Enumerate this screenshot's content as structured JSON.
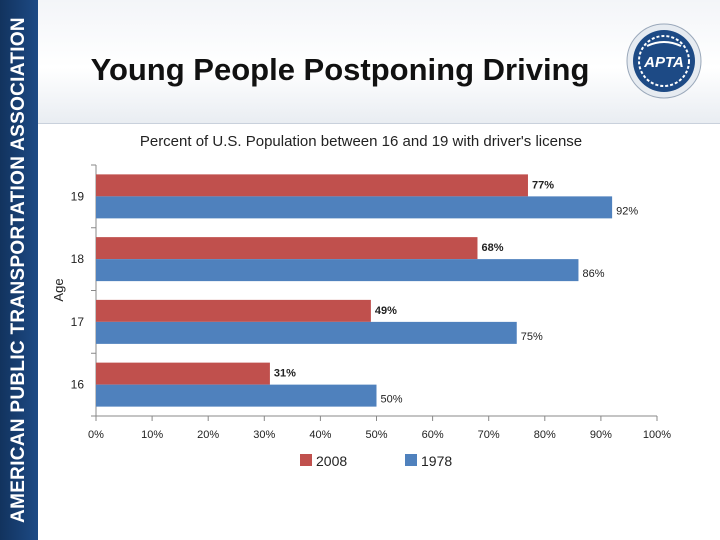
{
  "sidebar": {
    "text": "AMERICAN PUBLIC TRANSPORTATION ASSOCIATION"
  },
  "header": {
    "title": "Young People Postponing Driving",
    "logo_text": "APTA"
  },
  "colors": {
    "series_2008": "#c0504d",
    "series_1978": "#4f81bd",
    "sidebar": "#1d4a85"
  },
  "chart_data": {
    "type": "bar",
    "orientation": "horizontal",
    "title": "Percent of U.S. Population between 16 and 19 with driver's license",
    "xlabel": "",
    "ylabel": "Age",
    "categories": [
      "19",
      "18",
      "17",
      "16"
    ],
    "series": [
      {
        "name": "2008",
        "values": [
          77,
          68,
          49,
          31
        ],
        "labels": [
          "77%",
          "68%",
          "49%",
          "31%"
        ]
      },
      {
        "name": "1978",
        "values": [
          92,
          86,
          75,
          50
        ],
        "labels": [
          "92%",
          "86%",
          "75%",
          "50%"
        ]
      }
    ],
    "xlim": [
      0,
      100
    ],
    "xticks": [
      "0%",
      "10%",
      "20%",
      "30%",
      "40%",
      "50%",
      "60%",
      "70%",
      "80%",
      "90%",
      "100%"
    ],
    "grid": false,
    "legend_position": "bottom"
  }
}
